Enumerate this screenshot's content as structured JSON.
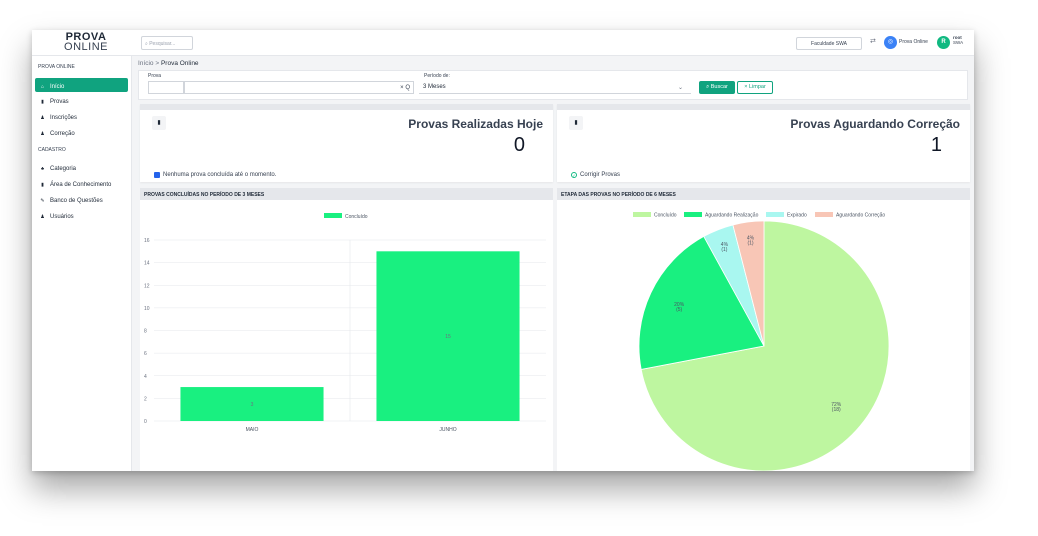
{
  "topbar": {
    "logo_line1": "PROVA",
    "logo_line2": "ONLINE",
    "search_placeholder": "Pesquisar...",
    "institution": "Faculdade SWA",
    "app_label": "Prova Online",
    "avatar_initial": "R",
    "user_name": "root",
    "user_org": "SWA"
  },
  "sidebar": {
    "section1": "PROVA ONLINE",
    "section2": "CADASTRO",
    "items": [
      {
        "label": "Início",
        "icon": "home-icon"
      },
      {
        "label": "Provas",
        "icon": "document-icon"
      },
      {
        "label": "Inscrições",
        "icon": "user-icon"
      },
      {
        "label": "Correção",
        "icon": "user-icon"
      },
      {
        "label": "Categoria",
        "icon": "sitemap-icon"
      },
      {
        "label": "Área de Conhecimento",
        "icon": "book-icon"
      },
      {
        "label": "Banco de Questões",
        "icon": "pencil-icon"
      },
      {
        "label": "Usuários",
        "icon": "user-icon"
      }
    ]
  },
  "breadcrumb": {
    "home": "Início",
    "separator": ">",
    "current": "Prova Online"
  },
  "filter": {
    "prova_label": "Prova",
    "clear_icon": "×",
    "search_icon": "Q",
    "period_label": "Período de:",
    "period_value": "3 Meses",
    "buscar_label": "Buscar",
    "limpar_label": "Limpar"
  },
  "cards": {
    "realizadas": {
      "title": "Provas Realizadas Hoje",
      "value": "0",
      "footer": "Nenhuma prova concluída até o momento."
    },
    "aguardando": {
      "title": "Provas Aguardando Correção",
      "value": "1",
      "footer": "Corrigir Provas"
    }
  },
  "bar_panel_title": "PROVAS CONCLUÍDAS NO PERÍODO DE 3 MESES",
  "pie_panel_title": "ETAPA DAS PROVAS NO PERÍODO DE 6 MESES",
  "chart_data": [
    {
      "type": "bar",
      "categories": [
        "MAIO",
        "JUNHO"
      ],
      "series": [
        {
          "name": "Concluído",
          "values": [
            3,
            15
          ]
        }
      ],
      "data_labels": [
        "3",
        "15"
      ],
      "ylim": [
        0,
        16
      ],
      "yticks": [
        "0",
        "2",
        "4",
        "6",
        "8",
        "10",
        "12",
        "14",
        "16"
      ],
      "grid": true,
      "legend": "top",
      "color": "#19f080"
    },
    {
      "type": "pie",
      "labels": [
        "Concluído",
        "Aguardando Realização",
        "Expirado",
        "Aguardando Correção"
      ],
      "values": [
        18,
        5,
        1,
        1
      ],
      "percent_labels": [
        "72%",
        "20%",
        "4%",
        "4%"
      ],
      "count_labels": [
        "(18)",
        "(5)",
        "(1)",
        "(1)"
      ],
      "colors": [
        "#bef6a0",
        "#19f080",
        "#a9f7f0",
        "#f8c6b6"
      ],
      "legend": "top"
    }
  ]
}
